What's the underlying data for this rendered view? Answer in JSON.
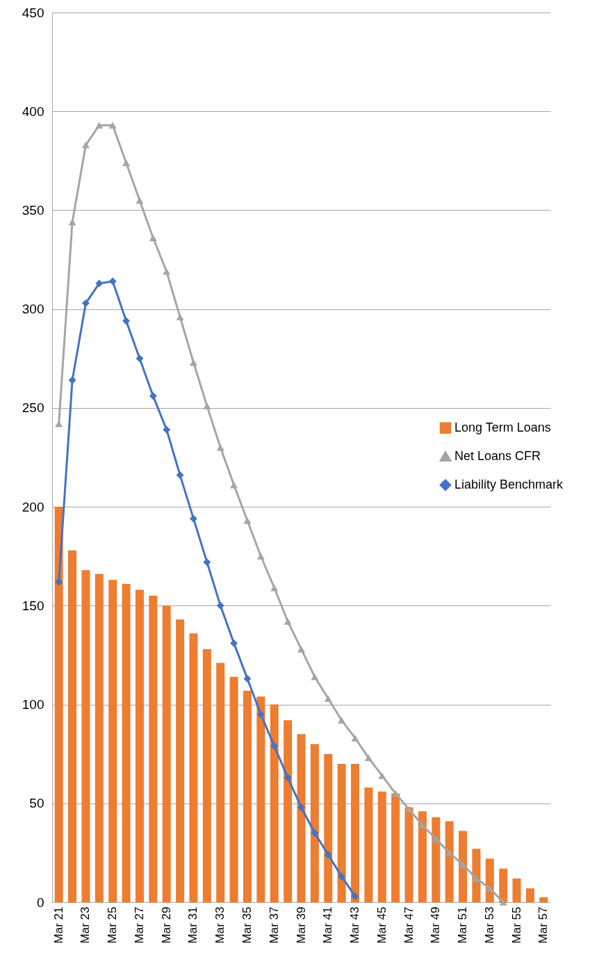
{
  "chart_data": {
    "type": "bar",
    "categories": [
      "Mar 21",
      null,
      "Mar 23",
      null,
      "Mar 25",
      null,
      "Mar 27",
      null,
      "Mar 29",
      null,
      "Mar 31",
      null,
      "Mar 33",
      null,
      "Mar 35",
      null,
      "Mar 37",
      null,
      "Mar 39",
      null,
      "Mar 41",
      null,
      "Mar 43",
      null,
      "Mar 45",
      null,
      "Mar 47",
      null,
      "Mar 49",
      null,
      "Mar 51",
      null,
      "Mar 53",
      null,
      "Mar 55",
      null,
      "Mar 57"
    ],
    "series": [
      {
        "name": "Long Term Loans",
        "color": "#ed7d31",
        "values": [
          200,
          178,
          168,
          166,
          163,
          161,
          158,
          155,
          150,
          143,
          136,
          128,
          121,
          114,
          107,
          104,
          100,
          92,
          85,
          80,
          75,
          70,
          70,
          58,
          56,
          55,
          48,
          46,
          43,
          41,
          36,
          27,
          22,
          17,
          12,
          7,
          2.5
        ]
      },
      {
        "name": "Net Loans CFR",
        "type": "line",
        "color": "#a5a5a5",
        "marker": "triangle",
        "values": [
          242,
          344,
          383,
          393,
          393,
          374,
          355,
          336,
          319,
          296,
          273,
          251,
          230,
          211,
          193,
          175,
          159,
          142,
          128,
          114,
          103,
          92,
          83,
          73,
          64,
          55,
          47,
          39,
          32,
          25,
          19,
          12,
          7,
          0,
          null,
          null,
          null
        ]
      },
      {
        "name": "Liability Benchmark",
        "type": "line",
        "color": "#4472c4",
        "marker": "diamond",
        "values": [
          162,
          264,
          303,
          313,
          314,
          294,
          275,
          256,
          239,
          216,
          194,
          172,
          150,
          131,
          113,
          95,
          79,
          63,
          48,
          35,
          24,
          13,
          3,
          null,
          null,
          null,
          null,
          null,
          null,
          null,
          null,
          null,
          null,
          null,
          null,
          null,
          null
        ]
      }
    ],
    "ylim": [
      0,
      450
    ],
    "yticks": [
      0,
      50,
      100,
      150,
      200,
      250,
      300,
      350,
      400,
      450
    ],
    "grid": "y",
    "legend": "right"
  }
}
